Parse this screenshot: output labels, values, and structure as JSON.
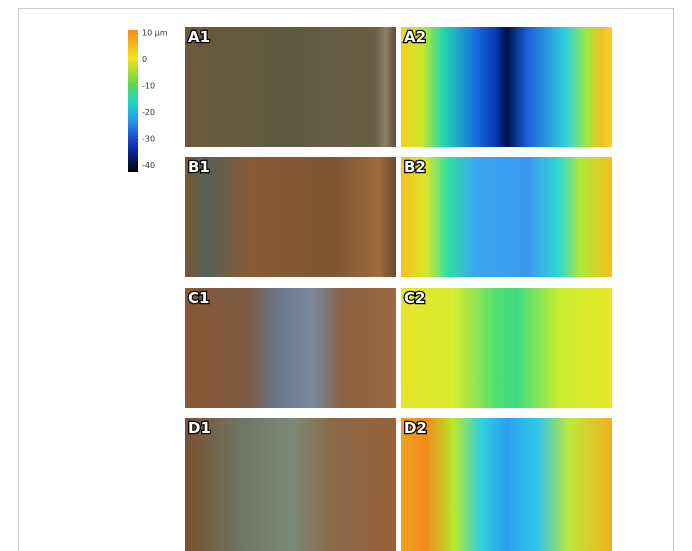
{
  "colorbar": {
    "labels": [
      "10 µm",
      "0",
      "-10",
      "-20",
      "-30",
      "-40"
    ]
  },
  "panels": [
    "A1",
    "A2",
    "B1",
    "B2",
    "C1",
    "C2",
    "D1",
    "D2"
  ]
}
